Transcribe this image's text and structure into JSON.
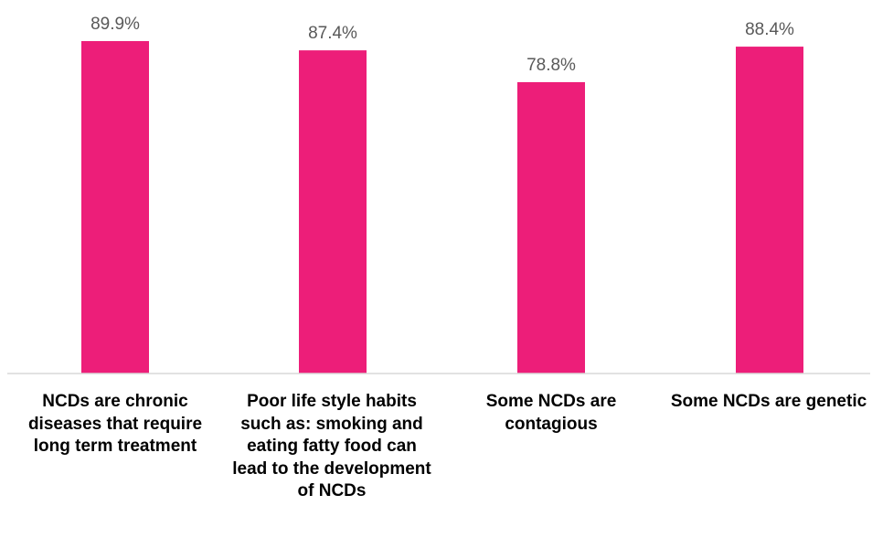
{
  "chart_data": {
    "type": "bar",
    "categories": [
      "NCDs are chronic diseases that require long term treatment",
      "Poor life style habits such as: smoking and eating fatty food can lead to the development of NCDs",
      "Some NCDs are contagious",
      "Some NCDs are genetic"
    ],
    "values": [
      89.9,
      87.4,
      78.8,
      88.4
    ],
    "data_labels": [
      "89.9%",
      "87.4%",
      "78.8%",
      "88.4%"
    ],
    "title": "",
    "xlabel": "",
    "ylabel": "",
    "ylim": [
      0,
      100
    ],
    "bar_color": "#ED1E79",
    "grid": false,
    "legend": "none"
  }
}
